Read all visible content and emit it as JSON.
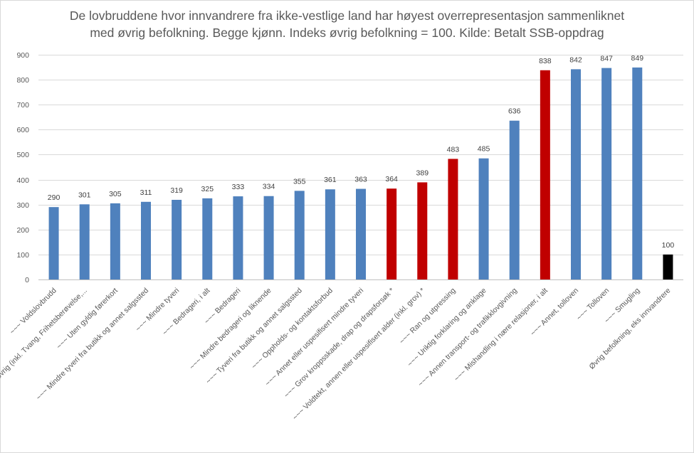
{
  "chart_data": {
    "type": "bar",
    "title_lines": [
      "De lovbruddene hvor innvandrere fra ikke-vestlige land har høyest overrepresentasjon sammenliknet",
      "med øvrig befolkning. Begge kjønn.  Indeks øvrig befolkning = 100. Kilde: Betalt  SSB-oppdrag"
    ],
    "xlabel": "",
    "ylabel": "",
    "ylim": [
      0,
      900
    ],
    "yticks": [
      0,
      100,
      200,
      300,
      400,
      500,
      600,
      700,
      800,
      900
    ],
    "grid": true,
    "legend": "none",
    "colors": {
      "blue": "#4f81bd",
      "red": "#c00000",
      "black": "#000000"
    },
    "categories": [
      "~~~ Voldslovbrudd",
      "~~~ Annet, øvrig (inkl. Tvang, Frihetsberøvelse,...",
      "~~~ Uten gyldig førerkort",
      "~~~ Mindre tyveri fra butikk og annet salgssted",
      "~~~ Mindre tyveri",
      "~~~ Bedrageri, i alt",
      "~~~ Bedrageri",
      "~~~ Mindre bedrageri og liknende",
      "~~~ Tyveri fra butikk og annet salgssted",
      "~~~ Oppholds- og kontaktsforbud",
      "~~~ Annet eller uspesifisert mindre tyveri",
      "~~~ Grov kroppsskade, drap og drapsforsøk *",
      "~~~ Voldtekt, annen eller uspesifisert alder (inkl. grov) *",
      "~~~ Ran og utpressing",
      "~~~ Uriktig forklaring og anklage",
      "~~~ Annen transport- og trafikklovgivning",
      "~~~ Mishandling i nære relasjoner, i alt",
      "~~~ Annet, tolloven",
      "~~~ Tolloven",
      "~~~ Smugling",
      "Øvrig befolkning, eks innvandrere"
    ],
    "values": [
      290,
      301,
      305,
      311,
      319,
      325,
      333,
      334,
      355,
      361,
      363,
      364,
      389,
      483,
      485,
      636,
      838,
      842,
      847,
      849,
      100
    ],
    "bar_colors": [
      "blue",
      "blue",
      "blue",
      "blue",
      "blue",
      "blue",
      "blue",
      "blue",
      "blue",
      "blue",
      "blue",
      "red",
      "red",
      "red",
      "blue",
      "blue",
      "red",
      "blue",
      "blue",
      "blue",
      "black"
    ]
  }
}
